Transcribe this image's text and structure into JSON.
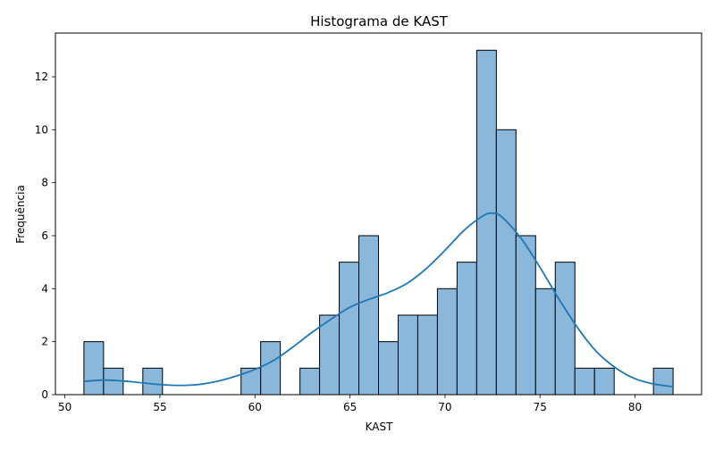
{
  "chart_data": {
    "type": "bar",
    "title": "Histograma de KAST",
    "xlabel": "KAST",
    "ylabel": "Frequência",
    "xlim": [
      49.5,
      83.5
    ],
    "ylim": [
      0,
      13.65
    ],
    "xticks": [
      50,
      55,
      60,
      65,
      70,
      75,
      80
    ],
    "yticks": [
      0,
      2,
      4,
      6,
      8,
      10,
      12
    ],
    "bin_width": 1.0333,
    "bins": [
      {
        "x0": 51.0,
        "count": 2
      },
      {
        "x0": 52.033,
        "count": 1
      },
      {
        "x0": 53.067,
        "count": 0
      },
      {
        "x0": 54.1,
        "count": 1
      },
      {
        "x0": 55.133,
        "count": 0
      },
      {
        "x0": 56.167,
        "count": 0
      },
      {
        "x0": 57.2,
        "count": 0
      },
      {
        "x0": 58.233,
        "count": 0
      },
      {
        "x0": 59.267,
        "count": 1
      },
      {
        "x0": 60.3,
        "count": 2
      },
      {
        "x0": 61.333,
        "count": 0
      },
      {
        "x0": 62.367,
        "count": 1
      },
      {
        "x0": 63.4,
        "count": 3
      },
      {
        "x0": 64.433,
        "count": 5
      },
      {
        "x0": 65.467,
        "count": 6
      },
      {
        "x0": 66.5,
        "count": 2
      },
      {
        "x0": 67.533,
        "count": 3
      },
      {
        "x0": 68.567,
        "count": 3
      },
      {
        "x0": 69.6,
        "count": 4
      },
      {
        "x0": 70.633,
        "count": 5
      },
      {
        "x0": 71.667,
        "count": 13
      },
      {
        "x0": 72.7,
        "count": 10
      },
      {
        "x0": 73.733,
        "count": 6
      },
      {
        "x0": 74.767,
        "count": 4
      },
      {
        "x0": 75.8,
        "count": 5
      },
      {
        "x0": 76.833,
        "count": 1
      },
      {
        "x0": 77.867,
        "count": 1
      },
      {
        "x0": 78.9,
        "count": 0
      },
      {
        "x0": 79.933,
        "count": 0
      },
      {
        "x0": 80.967,
        "count": 1
      }
    ],
    "kde": {
      "x": [
        51,
        52,
        53,
        54,
        55,
        56,
        57,
        58,
        59,
        60,
        61,
        62,
        63,
        64,
        65,
        66,
        67,
        68,
        69,
        70,
        71,
        72,
        72.5,
        73,
        74,
        75,
        76,
        77,
        78,
        79,
        80,
        81,
        82
      ],
      "y": [
        0.5,
        0.55,
        0.52,
        0.45,
        0.38,
        0.35,
        0.38,
        0.5,
        0.7,
        0.95,
        1.3,
        1.8,
        2.35,
        2.85,
        3.3,
        3.6,
        3.85,
        4.2,
        4.75,
        5.45,
        6.2,
        6.75,
        6.85,
        6.7,
        5.9,
        4.8,
        3.6,
        2.5,
        1.6,
        1.0,
        0.6,
        0.4,
        0.3
      ]
    },
    "colors": {
      "bar_fill": "#8bb8da",
      "bar_edge": "#000000",
      "kde_line": "#1f77b4"
    },
    "grid": false,
    "legend": "none"
  }
}
